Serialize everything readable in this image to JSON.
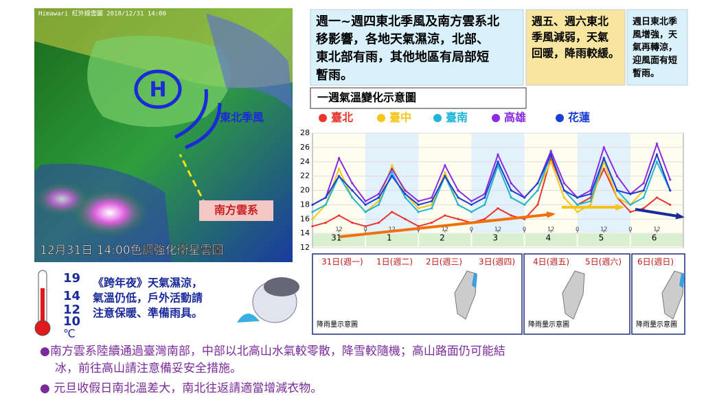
{
  "satellite": {
    "caption_top": "Himawari  紅外線雲圖  2018/12/31   14:00",
    "high": "H",
    "monsoon": "東北季風",
    "southern": "南方雲系",
    "caption": "12月31日 14:00色調強化衛星雲圖"
  },
  "boxes": [
    {
      "lines": [
        "週一~週四東北季風及南方雲系北",
        "移影響，各地天氣濕涼，北部、",
        "東北部有雨，其他地區有局部短",
        "暫雨。"
      ]
    },
    {
      "lines": [
        "週五、週六東北",
        "季風減弱，天氣",
        "回暖，降雨較緩。"
      ]
    },
    {
      "lines": [
        "週日東北季",
        "風增強，天",
        "氣再轉涼，",
        "迎風面有短",
        "暫雨。"
      ]
    }
  ],
  "chart_data": {
    "type": "line",
    "title": "一週氣溫變化示意圖",
    "x": [
      0,
      6,
      12,
      18,
      24,
      30,
      36,
      42,
      48,
      54,
      60,
      66,
      72,
      78,
      84,
      90,
      96,
      102,
      108,
      114,
      120,
      126,
      132,
      138,
      144,
      150,
      156,
      162
    ],
    "xlim": [
      0,
      168
    ],
    "xticks": [
      {
        "value": 12,
        "label": "12"
      },
      {
        "value": 24,
        "label": "0"
      },
      {
        "value": 36,
        "label": "12"
      },
      {
        "value": 48,
        "label": "0"
      },
      {
        "value": 60,
        "label": "12"
      },
      {
        "value": 72,
        "label": "0"
      },
      {
        "value": 84,
        "label": "12"
      },
      {
        "value": 96,
        "label": "0"
      },
      {
        "value": 108,
        "label": "12"
      },
      {
        "value": 120,
        "label": "0"
      },
      {
        "value": 132,
        "label": "12"
      },
      {
        "value": 144,
        "label": "0"
      },
      {
        "value": 156,
        "label": "12"
      }
    ],
    "days": [
      "31",
      "1",
      "2",
      "3",
      "4",
      "5",
      "6"
    ],
    "ylim": [
      12,
      28
    ],
    "yticks": [
      12,
      14,
      16,
      18,
      20,
      22,
      24,
      26,
      28
    ],
    "grid": true,
    "series": [
      {
        "name": "臺北",
        "color": "#e8352e",
        "values": [
          15,
          15.5,
          16.5,
          15.5,
          15,
          15.5,
          17,
          16,
          15,
          15.5,
          16.5,
          16,
          15.5,
          16,
          17.5,
          16.5,
          16,
          18,
          24.5,
          20,
          18,
          19,
          23,
          19,
          17,
          17.5,
          19,
          18
        ]
      },
      {
        "name": "臺中",
        "color": "#f5c518",
        "values": [
          16,
          18,
          23,
          19,
          17,
          18.5,
          23.5,
          19.5,
          17.5,
          18,
          22.5,
          18,
          17,
          18,
          23.5,
          19,
          18,
          20,
          24,
          19,
          17,
          18,
          24,
          19,
          18,
          20,
          25,
          20
        ]
      },
      {
        "name": "臺南",
        "color": "#1fb5d6",
        "values": [
          17,
          18,
          22,
          19,
          17,
          18,
          22.5,
          19,
          17,
          17.5,
          22,
          18,
          17,
          18,
          23.5,
          19,
          18,
          20,
          25,
          20,
          18,
          18.5,
          24.5,
          20,
          18,
          19,
          24,
          20
        ]
      },
      {
        "name": "高雄",
        "color": "#8a2be2",
        "values": [
          18,
          19,
          24.5,
          21,
          18.5,
          19.5,
          23,
          20,
          18.5,
          19,
          23.5,
          20,
          18.5,
          19.5,
          25,
          21,
          19,
          21,
          25.5,
          21,
          19,
          20,
          26,
          22,
          19.5,
          21,
          26.5,
          21.5
        ]
      },
      {
        "name": "花蓮",
        "color": "#1c3fd1",
        "values": [
          18,
          19,
          22,
          20,
          18,
          19,
          22,
          19.5,
          18,
          18.5,
          22,
          19,
          18,
          19,
          24,
          20,
          19,
          21,
          25,
          20,
          19,
          19.5,
          24.5,
          20,
          19.5,
          20,
          25,
          20
        ]
      }
    ]
  },
  "maps": {
    "days": [
      "31日(週一)",
      "1日(週二)",
      "2日(週三)",
      "3日(週四)",
      "4日(週五)",
      "5日(週六)",
      "6日(週日)"
    ],
    "captions": [
      "降雨量示意圖",
      "降雨量示意圖",
      "降雨量示意圖"
    ]
  },
  "thermometer": {
    "ticks": [
      19,
      14,
      12,
      10
    ],
    "unit": "℃"
  },
  "new_year": {
    "lines": [
      "《跨年夜》天氣濕涼，",
      "氣溫仍低，戶外活動請",
      "注意保暖、準備雨具。"
    ]
  },
  "notes": [
    {
      "lines": [
        "●南方雲系陸續通過臺灣南部，中部以北高山水氣較零散，降雪較隨機；高山路面仍可能結",
        "冰，前往高山請注意備妥安全措施。"
      ]
    },
    {
      "lines": [
        "● 元旦收假日南北溫差大，南北往返請適當增減衣物。"
      ]
    }
  ]
}
